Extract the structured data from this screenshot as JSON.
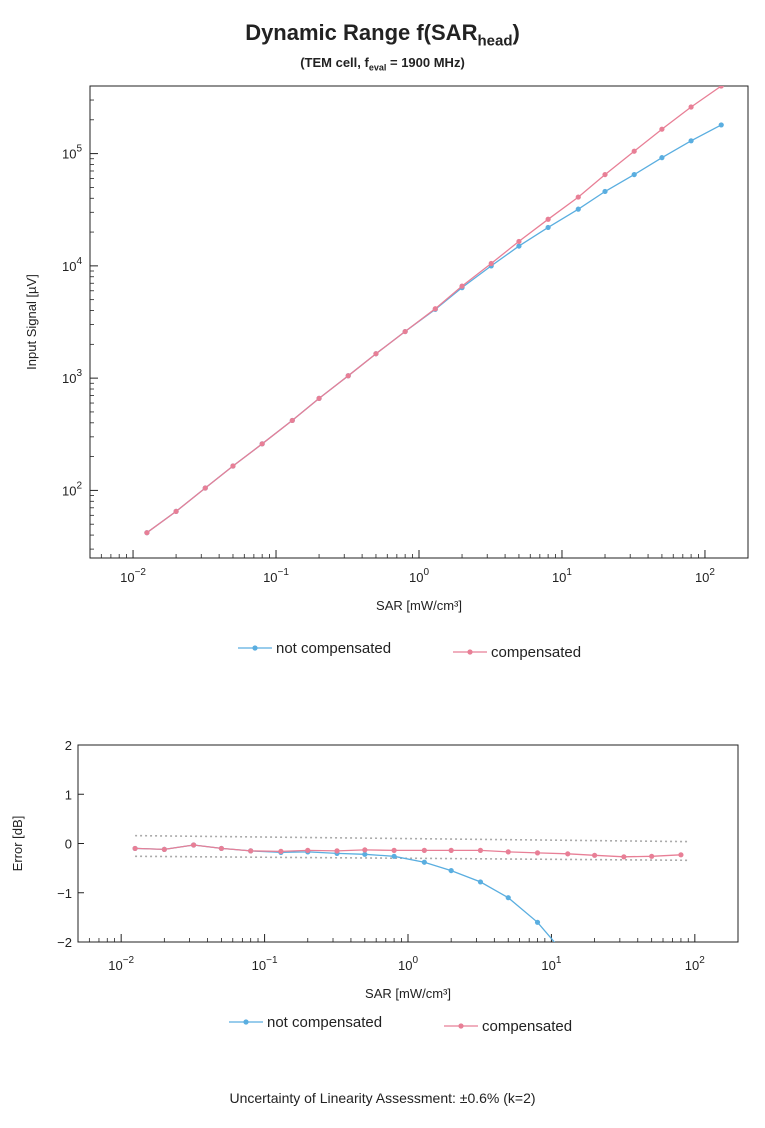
{
  "title": {
    "main": "Dynamic Range f(SAR",
    "sub": "head",
    "close": ")"
  },
  "subtitle": {
    "prefix": "(TEM cell, f",
    "sub": "eval",
    "rest": " = 1900 MHz)"
  },
  "footnote": "Uncertainty of Linearity Assessment: ±0.6% (k=2)",
  "colors": {
    "not_compensated": "#5aaee0",
    "compensated": "#e87f96",
    "band": "#aaaaaa"
  },
  "chart_data": [
    {
      "type": "line",
      "xscale": "log",
      "yscale": "log",
      "xlabel": "SAR [mW/cm³]",
      "ylabel": "Input Signal [µV]",
      "xlim": [
        0.005,
        200
      ],
      "ylim": [
        25,
        400000
      ],
      "xticks": [
        {
          "value": 0.01,
          "base": "10",
          "exp": "−2"
        },
        {
          "value": 0.1,
          "base": "10",
          "exp": "−1"
        },
        {
          "value": 1,
          "base": "10",
          "exp": "0"
        },
        {
          "value": 10,
          "base": "10",
          "exp": "1"
        },
        {
          "value": 100,
          "base": "10",
          "exp": "2"
        }
      ],
      "yticks": [
        {
          "value": 100,
          "base": "10",
          "exp": "2"
        },
        {
          "value": 1000,
          "base": "10",
          "exp": "3"
        },
        {
          "value": 10000,
          "base": "10",
          "exp": "4"
        },
        {
          "value": 100000,
          "base": "10",
          "exp": "5"
        }
      ],
      "series": [
        {
          "name": "not compensated",
          "color": "#5aaee0",
          "x": [
            0.0125,
            0.02,
            0.032,
            0.05,
            0.08,
            0.13,
            0.2,
            0.32,
            0.5,
            0.8,
            1.3,
            2,
            3.2,
            5,
            8,
            13,
            20,
            32,
            50,
            80,
            130
          ],
          "y": [
            42,
            65,
            105,
            165,
            260,
            420,
            660,
            1050,
            1650,
            2600,
            4100,
            6400,
            10000,
            15000,
            22000,
            32000,
            46000,
            65000,
            92000,
            130000,
            180000
          ]
        },
        {
          "name": "compensated",
          "color": "#e87f96",
          "x": [
            0.0125,
            0.02,
            0.032,
            0.05,
            0.08,
            0.13,
            0.2,
            0.32,
            0.5,
            0.8,
            1.3,
            2,
            3.2,
            5,
            8,
            13,
            20,
            32,
            50,
            80,
            130
          ],
          "y": [
            42,
            65,
            105,
            165,
            260,
            420,
            660,
            1050,
            1650,
            2600,
            4150,
            6600,
            10500,
            16500,
            26000,
            41000,
            65000,
            105000,
            165000,
            260000,
            400000
          ]
        }
      ],
      "legend": [
        "not compensated",
        "compensated"
      ],
      "legend_position": "bottom"
    },
    {
      "type": "line",
      "xscale": "log",
      "yscale": "linear",
      "xlabel": "SAR [mW/cm³]",
      "ylabel": "Error [dB]",
      "xlim": [
        0.005,
        200
      ],
      "ylim": [
        -2,
        2
      ],
      "xticks": [
        {
          "value": 0.01,
          "base": "10",
          "exp": "−2"
        },
        {
          "value": 0.1,
          "base": "10",
          "exp": "−1"
        },
        {
          "value": 1,
          "base": "10",
          "exp": "0"
        },
        {
          "value": 10,
          "base": "10",
          "exp": "1"
        },
        {
          "value": 100,
          "base": "10",
          "exp": "2"
        }
      ],
      "yticks": [
        {
          "value": 2,
          "label": "2"
        },
        {
          "value": 1,
          "label": "1"
        },
        {
          "value": 0,
          "label": "0"
        },
        {
          "value": -1,
          "label": "−1"
        },
        {
          "value": -2,
          "label": "−2"
        }
      ],
      "band": [
        -0.26,
        0.16
      ],
      "series": [
        {
          "name": "not compensated",
          "color": "#5aaee0",
          "x": [
            0.0125,
            0.02,
            0.032,
            0.05,
            0.08,
            0.13,
            0.2,
            0.32,
            0.5,
            0.8,
            1.3,
            2,
            3.2,
            5,
            8,
            12
          ],
          "y": [
            -0.1,
            -0.12,
            -0.03,
            -0.1,
            -0.15,
            -0.18,
            -0.17,
            -0.2,
            -0.22,
            -0.26,
            -0.38,
            -0.55,
            -0.78,
            -1.1,
            -1.6,
            -2.2
          ]
        },
        {
          "name": "compensated",
          "color": "#e87f96",
          "x": [
            0.0125,
            0.02,
            0.032,
            0.05,
            0.08,
            0.13,
            0.2,
            0.32,
            0.5,
            0.8,
            1.3,
            2,
            3.2,
            5,
            8,
            13,
            20,
            32,
            50,
            80
          ],
          "y": [
            -0.1,
            -0.12,
            -0.03,
            -0.1,
            -0.15,
            -0.16,
            -0.14,
            -0.15,
            -0.13,
            -0.14,
            -0.14,
            -0.14,
            -0.14,
            -0.17,
            -0.19,
            -0.21,
            -0.24,
            -0.27,
            -0.26,
            -0.23
          ]
        }
      ],
      "legend": [
        "not compensated",
        "compensated"
      ],
      "legend_position": "bottom"
    }
  ]
}
